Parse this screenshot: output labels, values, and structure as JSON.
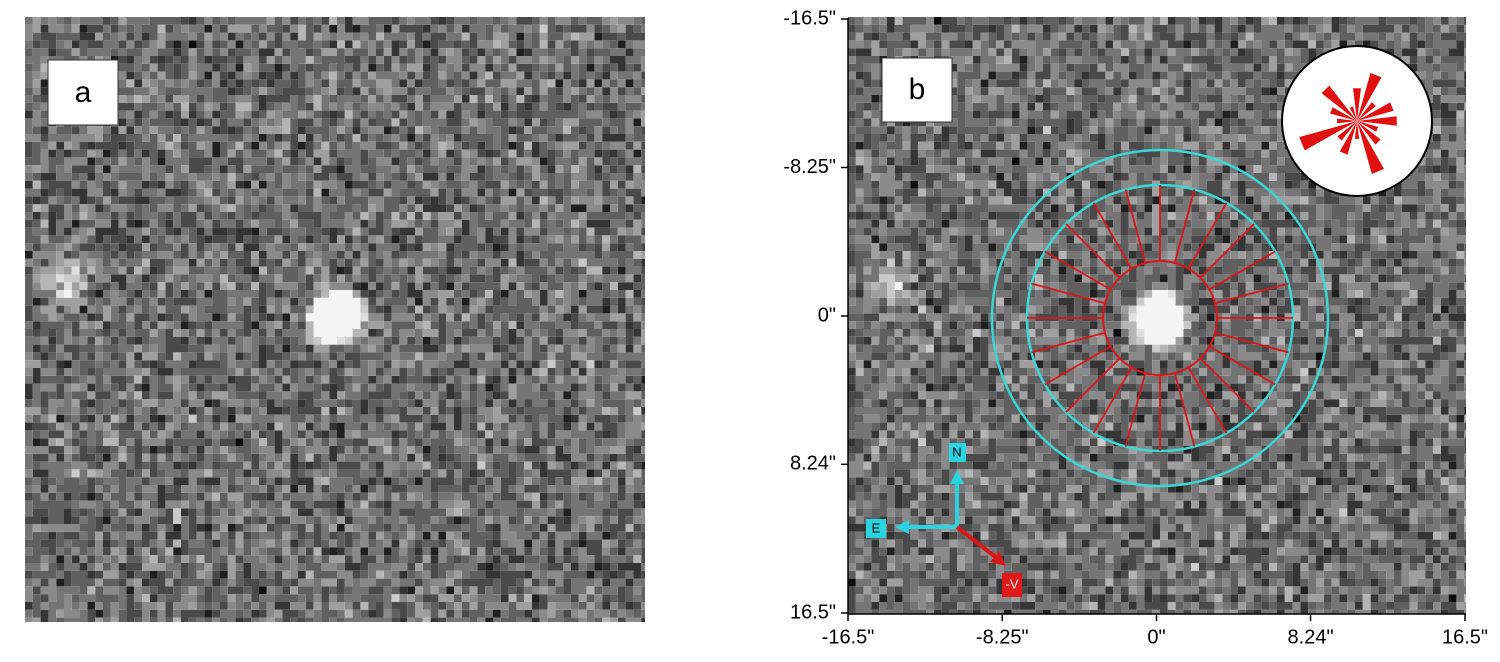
{
  "panels": [
    {
      "label": "a"
    },
    {
      "label": "b",
      "xticks": [
        {
          "value": -16.5,
          "label": "-16.5\""
        },
        {
          "value": -8.25,
          "label": "-8.25\""
        },
        {
          "value": 0,
          "label": "0\""
        },
        {
          "value": 8.24,
          "label": "8.24\""
        },
        {
          "value": 16.5,
          "label": "16.5\""
        }
      ],
      "yticks": [
        {
          "value": -16.5,
          "label": "-16.5\""
        },
        {
          "value": -8.25,
          "label": "-8.25\""
        },
        {
          "value": 0,
          "label": "0\""
        },
        {
          "value": 8.24,
          "label": "8.24\""
        },
        {
          "value": 16.5,
          "label": "16.5\""
        }
      ],
      "compass": {
        "north": "N",
        "east": "E",
        "velocity": "-V"
      }
    }
  ]
}
